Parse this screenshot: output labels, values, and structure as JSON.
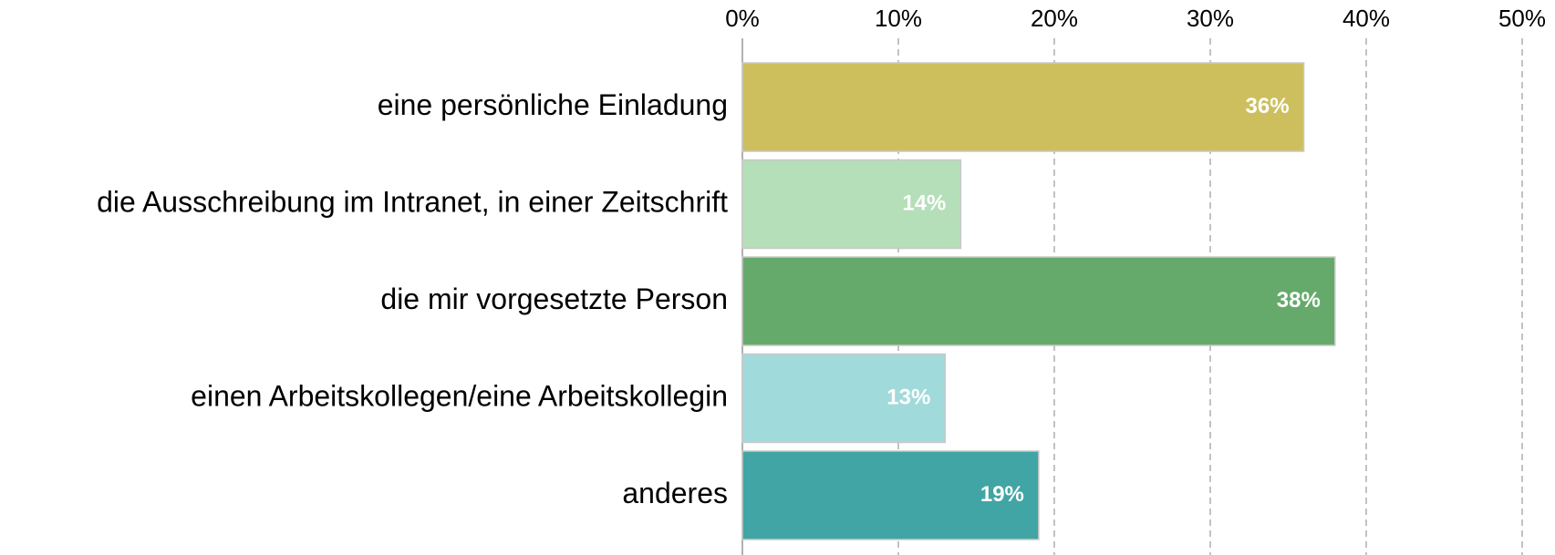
{
  "chart_data": {
    "type": "barh",
    "categories": [
      "eine persönliche Einladung",
      "die Ausschreibung im Intranet, in einer Zeitschrift",
      "die mir vorgesetzte Person",
      "einen Arbeitskollegen/eine Arbeitskollegin",
      "anderes"
    ],
    "values": [
      36,
      14,
      38,
      13,
      19
    ],
    "value_labels": [
      "36%",
      "14%",
      "38%",
      "13%",
      "19%"
    ],
    "colors": [
      "#cdbf5e",
      "#b5dfb8",
      "#66aa6b",
      "#a1dada",
      "#40a5a4"
    ],
    "xlim": [
      0,
      50
    ],
    "xticks": [
      {
        "value": 0,
        "label": "0%"
      },
      {
        "value": 10,
        "label": "10%"
      },
      {
        "value": 20,
        "label": "20%"
      },
      {
        "value": 30,
        "label": "30%"
      },
      {
        "value": 40,
        "label": "40%"
      },
      {
        "value": 50,
        "label": "50%"
      }
    ],
    "grid": true
  }
}
